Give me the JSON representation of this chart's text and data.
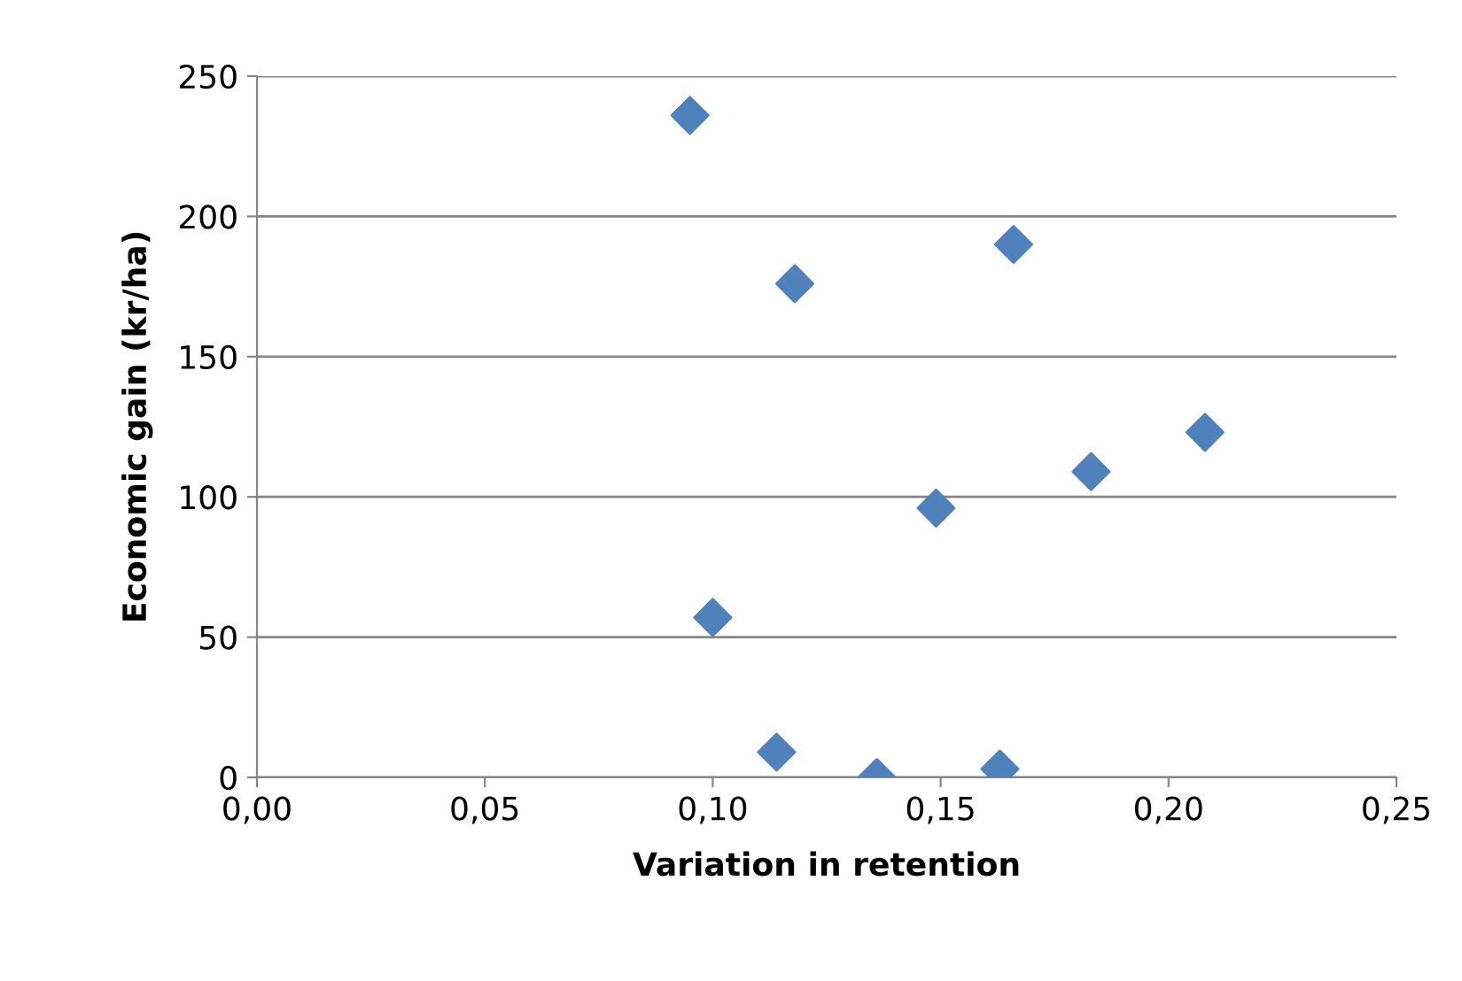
{
  "chart_data": {
    "type": "scatter",
    "xlabel": "Variation in retention",
    "ylabel": "Economic gain (kr/ha)",
    "series": [
      {
        "color": "#4f81bd",
        "x": [
          0.095,
          0.118,
          0.166,
          0.208,
          0.183,
          0.149,
          0.1,
          0.114,
          0.136,
          0.163
        ],
        "values": [
          236,
          176,
          190,
          123,
          109,
          96,
          57,
          9,
          0,
          3
        ]
      }
    ],
    "xlim": [
      0,
      0.25
    ],
    "xticks": [
      {
        "value": 0,
        "label": "0,00"
      },
      {
        "value": 0.05,
        "label": "0,05"
      },
      {
        "value": 0.1,
        "label": "0,10"
      },
      {
        "value": 0.15,
        "label": "0,15"
      },
      {
        "value": 0.2,
        "label": "0,20"
      },
      {
        "value": 0.25,
        "label": "0,25"
      }
    ],
    "ylim": [
      0,
      250
    ],
    "yticks": [
      0,
      50,
      100,
      150,
      200,
      250
    ],
    "grid": "y",
    "marker": "diamond",
    "legend": false
  }
}
